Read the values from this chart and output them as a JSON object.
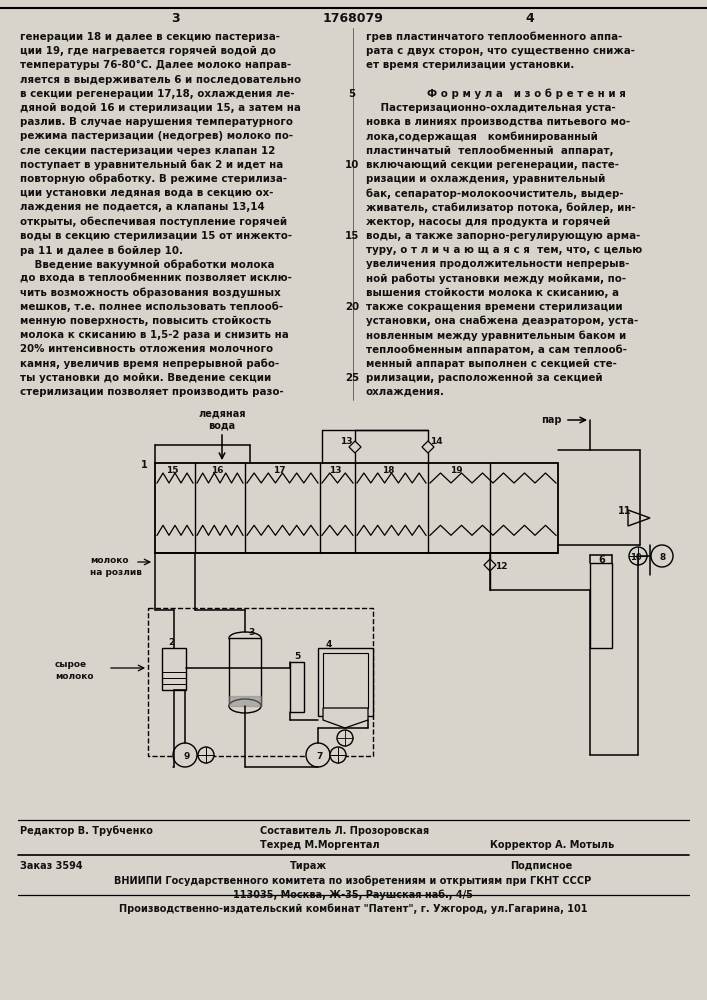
{
  "bg_color": "#d8d4cc",
  "page_width": 7.07,
  "page_height": 10.0,
  "header_left_num": "3",
  "header_center": "1768079",
  "header_right_num": "4",
  "left_col_lines": [
    "генерации 18 и далее в секцию пастериза-",
    "ции 19, где нагревается горячей водой до",
    "температуры 76-80°С. Далее молоко направ-",
    "ляется в выдерживатель 6 и последовательно",
    "в секции регенерации 17,18, охлаждения ле-",
    "дяной водой 16 и стерилизации 15, а затем на",
    "разлив. В случае нарушения температурного",
    "режима пастеризации (недогрев) молоко по-",
    "сле секции пастеризации через клапан 12",
    "поступает в уравнительный бак 2 и идет на",
    "повторную обработку. В режиме стерилиза-",
    "ции установки ледяная вода в секцию ох-",
    "лаждения не подается, а клапаны 13,14",
    "открыты, обеспечивая поступление горячей",
    "воды в секцию стерилизации 15 от инжекто-",
    "ра 11 и далее в бойлер 10.",
    "    Введение вакуумной обработки молока",
    "до входа в теплообменник позволяет исклю-",
    "чить возможность образования воздушных",
    "мешков, т.е. полнее использовать теплооб-",
    "менную поверхность, повысить стойкость",
    "молока к скисанию в 1,5-2 раза и снизить на",
    "20% интенсивность отложения молочного",
    "камня, увеличив время непрерывной рабо-",
    "ты установки до мойки. Введение секции",
    "стерилизации позволяет производить разо-"
  ],
  "right_col_lines": [
    "грев пластинчатого теплообменного аппа-",
    "рата с двух сторон, что существенно снижа-",
    "ет время стерилизации установки.",
    "",
    "Ф о р м у л а   и з о б р е т е н и я",
    "    Пастеризационно-охладительная уста-",
    "новка в линиях производства питьевого мо-",
    "лока,содержащая   комбинированный",
    "пластинчатый  теплообменный  аппарат,",
    "включающий секции регенерации, пасте-",
    "ризации и охлаждения, уравнительный",
    "бак, сепаратор-молокоочиститель, выдер-",
    "живатель, стабилизатор потока, бойлер, ин-",
    "жектор, насосы для продукта и горячей",
    "воды, а также запорно-регулирующую арма-",
    "туру, о т л и ч а ю щ а я с я  тем, что, с целью",
    "увеличения продолжительности непрерыв-",
    "ной работы установки между мойками, по-",
    "вышения стойкости молока к скисанию, а",
    "также сокращения времени стерилизации",
    "установки, она снабжена деаэратором, уста-",
    "новленным между уравнительным баком и",
    "теплообменным аппаратом, а сам теплооб-",
    "менный аппарат выполнен с секцией сте-",
    "рилизации, расположенной за секцией",
    "охлаждения."
  ],
  "line_numbers": [
    5,
    10,
    15,
    20,
    25
  ],
  "footer_editor": "Редактор В. Трубченко",
  "footer_composer": "Составитель Л. Прозоровская",
  "footer_techred": "Техред М.Моргентал",
  "footer_corrector": "Корректор А. Мотыль",
  "footer_order": "Заказ 3594",
  "footer_tirazh": "Тираж",
  "footer_podpisnoe": "Подписное",
  "footer_vniiipi": "ВНИИПИ Государственного комитета по изобретениям и открытиям при ГКНТ СССР",
  "footer_address": "113035, Москва, Ж-35, Раушская наб., 4/5",
  "footer_factory": "Производственно-издательский комбинат \"Патент\", г. Ужгород, ул.Гагарина, 101"
}
